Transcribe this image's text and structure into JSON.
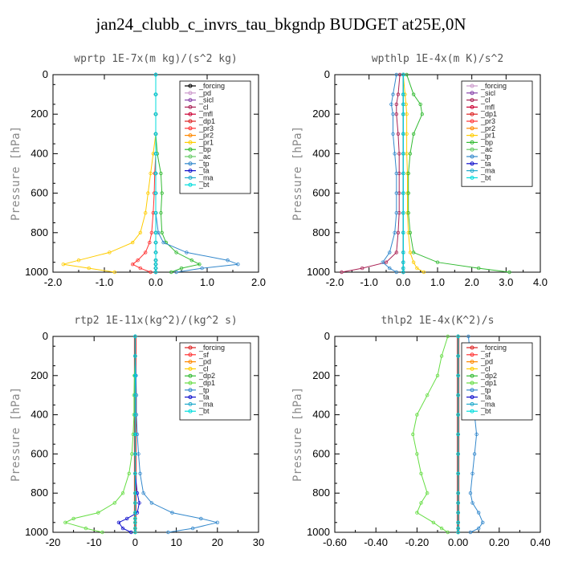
{
  "title": "jan24_clubb_c_invrs_tau_bkgndp  BUDGET at25E,0N",
  "chart_data": [
    {
      "type": "line",
      "title": "wprtp   1E-7x(m kg)/(s^2 kg)",
      "ylabel": "Pressure [hPa]",
      "xlim": [
        -2.0,
        2.0
      ],
      "ylim": [
        1000,
        0
      ],
      "xticks": [
        "-2.0",
        "-1.0",
        "0.0",
        "1.0",
        "2.0"
      ],
      "yticks": [
        "0",
        "200",
        "400",
        "600",
        "800",
        "1000"
      ],
      "legend_position": "top-right",
      "y": [
        0,
        100,
        200,
        300,
        400,
        500,
        600,
        700,
        800,
        850,
        900,
        940,
        960,
        980,
        1000
      ],
      "series": [
        {
          "name": "_forcing",
          "color": "#000000",
          "values": [
            0,
            0,
            0,
            0,
            0,
            0,
            0,
            0,
            0,
            0,
            0,
            0,
            0,
            0,
            0
          ]
        },
        {
          "name": "_pd",
          "color": "#cc99cc",
          "values": [
            0,
            0,
            0,
            0,
            0,
            0,
            0,
            0,
            0,
            0,
            0,
            0,
            0,
            0,
            0
          ]
        },
        {
          "name": "_sicl",
          "color": "#8844aa",
          "values": [
            0,
            0,
            0,
            0,
            0,
            0,
            0,
            0,
            0,
            0,
            0,
            0,
            0,
            0,
            0
          ]
        },
        {
          "name": "_cl",
          "color": "#aa2255",
          "values": [
            0,
            0,
            0,
            0,
            0,
            0,
            0,
            0,
            0,
            0,
            0,
            0,
            0,
            0,
            0
          ]
        },
        {
          "name": "_mfl",
          "color": "#cc0033",
          "values": [
            0,
            0,
            0,
            0,
            0,
            0,
            0,
            0,
            0,
            0,
            0,
            0,
            0,
            0,
            0
          ]
        },
        {
          "name": "_dp1",
          "color": "#dd2222",
          "values": [
            0,
            0,
            0,
            0,
            0,
            0,
            0,
            0,
            0,
            0,
            0,
            0,
            0,
            0,
            0
          ]
        },
        {
          "name": "_pr3",
          "color": "#ff3333",
          "values": [
            0,
            0,
            0,
            0,
            0,
            -0.02,
            -0.03,
            -0.05,
            -0.08,
            -0.12,
            -0.2,
            -0.35,
            -0.45,
            -0.3,
            -0.1
          ]
        },
        {
          "name": "_pr2",
          "color": "#ff8800",
          "values": [
            0,
            0,
            0,
            0,
            0,
            0,
            0,
            0,
            0,
            0,
            0,
            0,
            0,
            0,
            0
          ]
        },
        {
          "name": "_pr1",
          "color": "#ffcc00",
          "values": [
            0,
            0,
            0,
            0,
            -0.05,
            -0.1,
            -0.15,
            -0.2,
            -0.3,
            -0.45,
            -0.9,
            -1.5,
            -1.8,
            -1.3,
            -0.8
          ]
        },
        {
          "name": "_bp",
          "color": "#33bb33",
          "values": [
            0,
            0,
            0,
            0,
            0.03,
            0.1,
            0.12,
            0.1,
            0.12,
            0.2,
            0.4,
            0.7,
            0.85,
            0.5,
            0.3
          ]
        },
        {
          "name": "_ac",
          "color": "#66cc66",
          "values": [
            0,
            0,
            0,
            0,
            0,
            0,
            0,
            0,
            0,
            0,
            0,
            0,
            0,
            0,
            0
          ]
        },
        {
          "name": "_tp",
          "color": "#3388cc",
          "values": [
            0,
            0,
            0,
            0,
            0,
            0,
            0,
            0,
            0.05,
            0.15,
            0.6,
            1.4,
            1.6,
            0.9,
            0.4
          ]
        },
        {
          "name": "_ta",
          "color": "#1111cc",
          "values": [
            0,
            0,
            0,
            0,
            0,
            0,
            0,
            0,
            0,
            0,
            0,
            0,
            0,
            0,
            0
          ]
        },
        {
          "name": "_ma",
          "color": "#22aacc",
          "values": [
            0,
            0,
            0,
            0,
            0,
            0,
            0,
            0,
            0,
            0,
            0,
            0,
            0,
            0,
            0
          ]
        },
        {
          "name": "_bt",
          "color": "#00dddd",
          "values": [
            0,
            0,
            0,
            0,
            0,
            0,
            0,
            0,
            0,
            0,
            0,
            0,
            0,
            0,
            0
          ]
        }
      ]
    },
    {
      "type": "line",
      "title": "wpthlp   1E-4x(m K)/s^2",
      "ylabel": "Pressure [hPa]",
      "xlim": [
        -2.0,
        4.0
      ],
      "ylim": [
        1000,
        0
      ],
      "xticks": [
        "-2.0",
        "-1.0",
        "0.0",
        "1.0",
        "2.0",
        "3.0",
        "4.0"
      ],
      "yticks": [
        "0",
        "200",
        "400",
        "600",
        "800",
        "1000"
      ],
      "legend_position": "top-right",
      "y": [
        0,
        100,
        150,
        200,
        300,
        400,
        500,
        600,
        700,
        800,
        900,
        950,
        980,
        1000
      ],
      "series": [
        {
          "name": "_forcing",
          "color": "#cc99cc",
          "values": [
            0,
            0,
            0,
            0,
            0,
            0,
            0,
            0,
            0,
            0,
            0,
            0,
            0,
            0
          ]
        },
        {
          "name": "_sicl",
          "color": "#8844aa",
          "values": [
            0,
            0,
            0,
            0,
            0,
            0,
            0,
            0,
            0,
            0,
            0,
            0,
            0,
            0
          ]
        },
        {
          "name": "_cl",
          "color": "#aa2255",
          "values": [
            -0.1,
            -0.15,
            -0.2,
            -0.2,
            -0.15,
            -0.12,
            -0.12,
            -0.12,
            -0.12,
            -0.15,
            -0.2,
            -0.5,
            -1.2,
            -1.8
          ]
        },
        {
          "name": "_mfl",
          "color": "#cc0033",
          "values": [
            0,
            0,
            0,
            0,
            0,
            0,
            0,
            0,
            0,
            0,
            0,
            0,
            0,
            0
          ]
        },
        {
          "name": "_dp1",
          "color": "#dd2222",
          "values": [
            0,
            0,
            0,
            0,
            0,
            0,
            0,
            0,
            0,
            0,
            0,
            0,
            0,
            0
          ]
        },
        {
          "name": "_pr3",
          "color": "#ff3333",
          "values": [
            0,
            0,
            0,
            0,
            0,
            0,
            0,
            0,
            0,
            0,
            0,
            0,
            0,
            0
          ]
        },
        {
          "name": "_pr2",
          "color": "#ff8800",
          "values": [
            0,
            0,
            0,
            0,
            0,
            0,
            0,
            0,
            0,
            0,
            0,
            0,
            0,
            0
          ]
        },
        {
          "name": "_pr1",
          "color": "#ffcc00",
          "values": [
            0,
            0.05,
            0.08,
            0.1,
            0.1,
            0.1,
            0.12,
            0.12,
            0.12,
            0.15,
            0.2,
            0.3,
            0.4,
            0.6
          ]
        },
        {
          "name": "_bp",
          "color": "#33bb33",
          "values": [
            0.1,
            0.3,
            0.5,
            0.55,
            0.3,
            0.2,
            0.15,
            0.15,
            0.15,
            0.2,
            0.3,
            1.0,
            2.2,
            3.1
          ]
        },
        {
          "name": "_ac",
          "color": "#66cc66",
          "values": [
            0,
            0,
            0,
            0,
            0,
            0,
            0,
            0,
            0,
            0,
            0,
            0,
            0,
            0
          ]
        },
        {
          "name": "_tp",
          "color": "#3388cc",
          "values": [
            -0.2,
            -0.3,
            -0.35,
            -0.3,
            -0.3,
            -0.25,
            -0.2,
            -0.2,
            -0.2,
            -0.25,
            -0.4,
            -0.6,
            -0.4,
            -0.2
          ]
        },
        {
          "name": "_ta",
          "color": "#1111cc",
          "values": [
            0,
            0,
            0,
            0,
            0,
            0,
            0,
            0,
            0,
            0,
            0,
            0,
            0,
            0
          ]
        },
        {
          "name": "_ma",
          "color": "#22aacc",
          "values": [
            0,
            0,
            0,
            0,
            0,
            0,
            0,
            0,
            0,
            0,
            0,
            0,
            0,
            0
          ]
        },
        {
          "name": "_bt",
          "color": "#00dddd",
          "values": [
            0,
            0,
            0,
            0,
            0,
            0,
            0,
            0,
            0,
            0,
            0,
            0,
            0,
            0
          ]
        }
      ]
    },
    {
      "type": "line",
      "title": "rtp2   1E-11x(kg^2)/(kg^2 s)",
      "ylabel": "Pressure [hPa]",
      "xlim": [
        -20,
        30
      ],
      "ylim": [
        1000,
        0
      ],
      "xticks": [
        "-20",
        "-10",
        "0",
        "10",
        "20",
        "30"
      ],
      "yticks": [
        "0",
        "200",
        "400",
        "600",
        "800",
        "1000"
      ],
      "legend_position": "top-right",
      "y": [
        0,
        100,
        200,
        300,
        400,
        500,
        600,
        700,
        800,
        850,
        900,
        930,
        950,
        980,
        1000
      ],
      "series": [
        {
          "name": "_forcing",
          "color": "#dd2222",
          "values": [
            0,
            0,
            0,
            0,
            0,
            0,
            0,
            0,
            0,
            0,
            0,
            0,
            0,
            0,
            0
          ]
        },
        {
          "name": "_sf",
          "color": "#ff3333",
          "values": [
            0,
            0,
            0,
            0,
            0,
            0,
            0,
            0,
            0,
            0,
            0,
            0,
            0,
            0,
            0
          ]
        },
        {
          "name": "_pd",
          "color": "#ff8800",
          "values": [
            0,
            0,
            0,
            0,
            0,
            0,
            0,
            0,
            0,
            0,
            0,
            0,
            0,
            0,
            0
          ]
        },
        {
          "name": "_cl",
          "color": "#ffcc00",
          "values": [
            0,
            0,
            0,
            0,
            0,
            0,
            0,
            0,
            0,
            0,
            0,
            0,
            0,
            0,
            0
          ]
        },
        {
          "name": "_dp2",
          "color": "#33bb33",
          "values": [
            0,
            0,
            0,
            0,
            0,
            0,
            0,
            0,
            0,
            0,
            0,
            0,
            0,
            0,
            0
          ]
        },
        {
          "name": "_dp1",
          "color": "#66dd44",
          "values": [
            0,
            0,
            -0.2,
            -0.3,
            -0.3,
            -0.5,
            -0.8,
            -1.5,
            -3,
            -5,
            -9,
            -15,
            -17,
            -12,
            -8
          ]
        },
        {
          "name": "_tp",
          "color": "#3388cc",
          "values": [
            0,
            0,
            0.2,
            0.3,
            0.3,
            0.5,
            0.8,
            1.2,
            2,
            4,
            9,
            16,
            20,
            14,
            8
          ]
        },
        {
          "name": "_ta",
          "color": "#1111cc",
          "values": [
            0,
            0,
            0,
            0,
            0,
            0,
            0,
            0,
            0.5,
            1,
            0.5,
            -2,
            -4,
            -3,
            -1
          ]
        },
        {
          "name": "_ma",
          "color": "#22aacc",
          "values": [
            0,
            0,
            0,
            0,
            0,
            0,
            0,
            0,
            0,
            0,
            0,
            0,
            0,
            0,
            0
          ]
        },
        {
          "name": "_bt",
          "color": "#00dddd",
          "values": [
            0,
            0,
            0,
            0,
            0,
            0,
            0,
            0,
            0,
            0,
            0,
            0,
            0,
            0,
            0
          ]
        }
      ]
    },
    {
      "type": "line",
      "title": "thlp2   1E-4x(K^2)/s",
      "ylabel": "Pressure [hPa]",
      "xlim": [
        -0.6,
        0.4
      ],
      "ylim": [
        1000,
        0
      ],
      "xticks": [
        "-0.60",
        "-0.40",
        "-0.20",
        "0.00",
        "0.20",
        "0.40"
      ],
      "yticks": [
        "0",
        "200",
        "400",
        "600",
        "800",
        "1000"
      ],
      "legend_position": "top-right",
      "y": [
        0,
        100,
        200,
        300,
        400,
        500,
        600,
        700,
        800,
        850,
        900,
        950,
        980,
        1000
      ],
      "series": [
        {
          "name": "_forcing",
          "color": "#dd2222",
          "values": [
            0,
            0,
            0,
            0,
            0,
            0,
            0,
            0,
            0,
            0,
            0,
            0,
            0,
            0
          ]
        },
        {
          "name": "_sf",
          "color": "#ff3333",
          "values": [
            0,
            0,
            0,
            0,
            0,
            0,
            0,
            0,
            0,
            0,
            0,
            0,
            0,
            0
          ]
        },
        {
          "name": "_pd",
          "color": "#ff8800",
          "values": [
            0,
            0,
            0,
            0,
            0,
            0,
            0,
            0,
            0,
            0,
            0,
            0,
            0,
            0
          ]
        },
        {
          "name": "_cl",
          "color": "#ffcc00",
          "values": [
            0,
            0,
            0,
            0,
            0,
            0,
            0,
            0,
            0,
            0,
            0,
            0,
            0,
            0
          ]
        },
        {
          "name": "_dp2",
          "color": "#33bb33",
          "values": [
            0,
            0,
            0,
            0,
            0,
            0,
            0,
            0,
            0,
            0,
            0,
            0,
            0,
            0
          ]
        },
        {
          "name": "_dp1",
          "color": "#66dd44",
          "values": [
            -0.05,
            -0.08,
            -0.1,
            -0.15,
            -0.2,
            -0.22,
            -0.2,
            -0.18,
            -0.15,
            -0.18,
            -0.2,
            -0.12,
            -0.08,
            -0.05
          ]
        },
        {
          "name": "_tp",
          "color": "#3388cc",
          "values": [
            0.05,
            0.06,
            0.06,
            0.06,
            0.08,
            0.09,
            0.08,
            0.07,
            0.06,
            0.07,
            0.1,
            0.12,
            0.1,
            0.06
          ]
        },
        {
          "name": "_ta",
          "color": "#1111cc",
          "values": [
            0,
            0,
            0,
            0,
            0,
            0,
            0,
            0,
            0,
            0,
            0,
            0,
            0,
            0
          ]
        },
        {
          "name": "_ma",
          "color": "#22aacc",
          "values": [
            0,
            0,
            0,
            0,
            0,
            0,
            0,
            0,
            0,
            0,
            0,
            0,
            0,
            0
          ]
        },
        {
          "name": "_bt",
          "color": "#00dddd",
          "values": [
            0,
            0,
            0,
            0,
            0,
            0,
            0,
            0,
            0,
            0,
            0,
            0,
            0,
            0
          ]
        }
      ]
    }
  ]
}
